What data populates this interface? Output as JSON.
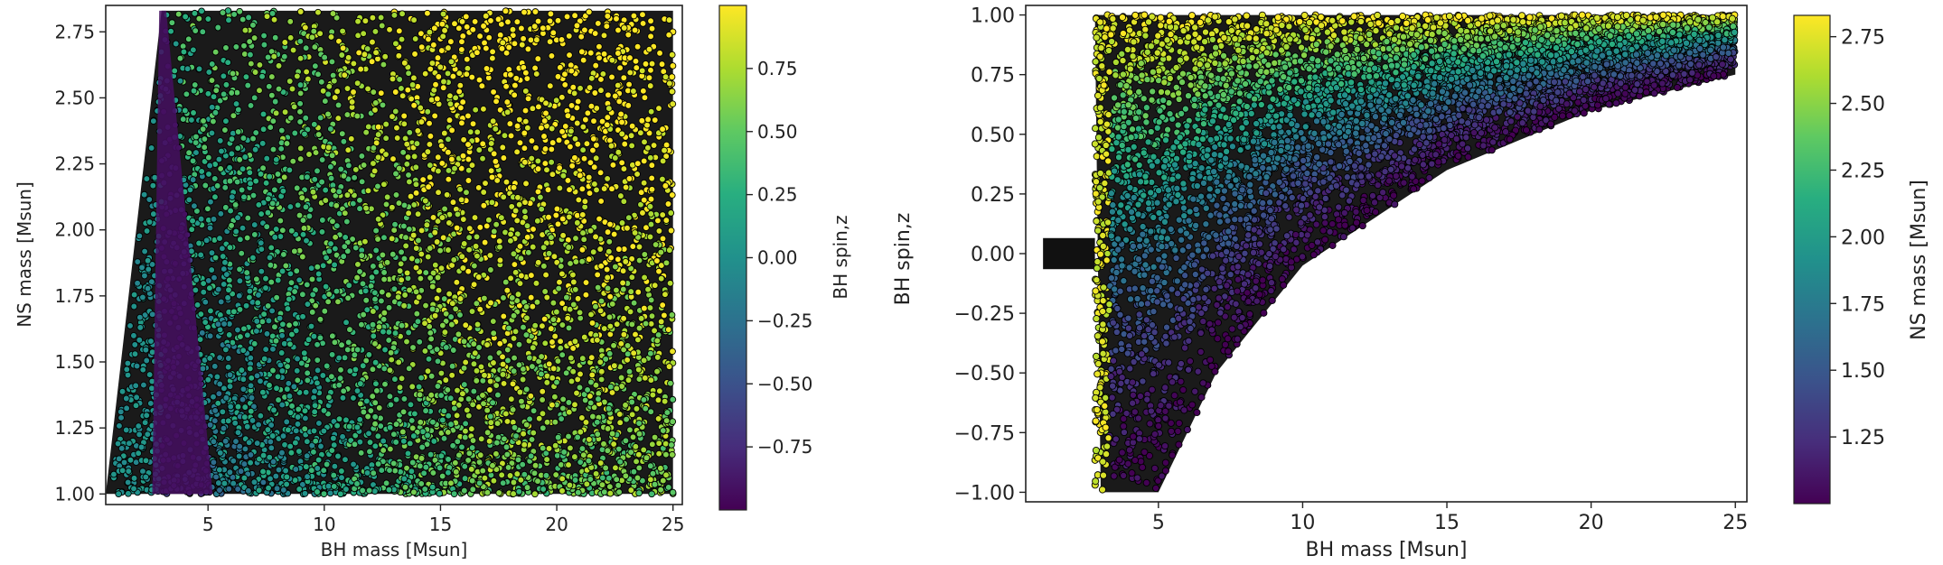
{
  "chart_data": [
    {
      "type": "scatter",
      "xlabel": "BH mass [Msun]",
      "ylabel": "NS mass [Msun]",
      "xlim": [
        0.6,
        25.4
      ],
      "ylim": [
        0.96,
        2.85
      ],
      "xticks": [
        5,
        10,
        15,
        20,
        25
      ],
      "xtick_labels": [
        "5",
        "10",
        "15",
        "20",
        "25"
      ],
      "yticks": [
        1.0,
        1.25,
        1.5,
        1.75,
        2.0,
        2.25,
        2.5,
        2.75
      ],
      "ytick_labels": [
        "1.00",
        "1.25",
        "1.50",
        "1.75",
        "2.00",
        "2.25",
        "2.50",
        "2.75"
      ],
      "color_variable": "BH spin,z",
      "colorbar": {
        "label": "BH spin,z",
        "colormap": "viridis",
        "range": [
          -1.0,
          1.0
        ],
        "ticks": [
          0.75,
          0.5,
          0.25,
          0.0,
          -0.25,
          -0.5,
          -0.75
        ],
        "tick_labels": [
          "0.75",
          "0.50",
          "0.25",
          "0.00",
          "−0.25",
          "−0.50",
          "−0.75"
        ]
      },
      "grid": false,
      "marker": "circle with black edge",
      "region": {
        "description_points": [
          [
            0.6,
            1.0
          ],
          [
            3.0,
            2.83
          ],
          [
            25.0,
            2.83
          ],
          [
            25.0,
            1.0
          ]
        ],
        "purple_wedge": [
          [
            2.6,
            1.0
          ],
          [
            2.9,
            2.83
          ],
          [
            3.2,
            2.83
          ],
          [
            5.2,
            1.0
          ]
        ]
      }
    },
    {
      "type": "scatter",
      "xlabel": "BH mass [Msun]",
      "ylabel": "BH spin,z",
      "xlim": [
        0.4,
        25.4
      ],
      "ylim": [
        -1.04,
        1.04
      ],
      "xticks": [
        5,
        10,
        15,
        20,
        25
      ],
      "xtick_labels": [
        "5",
        "10",
        "15",
        "20",
        "25"
      ],
      "yticks": [
        1.0,
        0.75,
        0.5,
        0.25,
        0.0,
        -0.25,
        -0.5,
        -0.75,
        -1.0
      ],
      "ytick_labels": [
        "1.00",
        "0.75",
        "0.50",
        "0.25",
        "0.00",
        "−0.25",
        "−0.50",
        "−0.75",
        "−1.00"
      ],
      "color_variable": "NS mass [Msun]",
      "colorbar": {
        "label": "NS mass [Msun]",
        "colormap": "viridis",
        "range": [
          1.0,
          2.83
        ],
        "ticks": [
          2.75,
          2.5,
          2.25,
          2.0,
          1.75,
          1.5,
          1.25
        ],
        "tick_labels": [
          "2.75",
          "2.50",
          "2.25",
          "2.00",
          "1.75",
          "1.50",
          "1.25"
        ]
      },
      "grid": false,
      "marker": "circle with black edge",
      "region": {
        "low_mass_strip": {
          "x": [
            1.0,
            2.8
          ],
          "y": [
            -0.05,
            0.05
          ]
        },
        "main_block": {
          "x": [
            2.8,
            25.0
          ],
          "y": [
            -1.0,
            1.0
          ]
        },
        "lower_boundary": [
          [
            5.0,
            -1.0
          ],
          [
            7.0,
            -0.5
          ],
          [
            10.0,
            -0.05
          ],
          [
            15.0,
            0.35
          ],
          [
            20.0,
            0.6
          ],
          [
            25.0,
            0.75
          ]
        ]
      }
    }
  ]
}
